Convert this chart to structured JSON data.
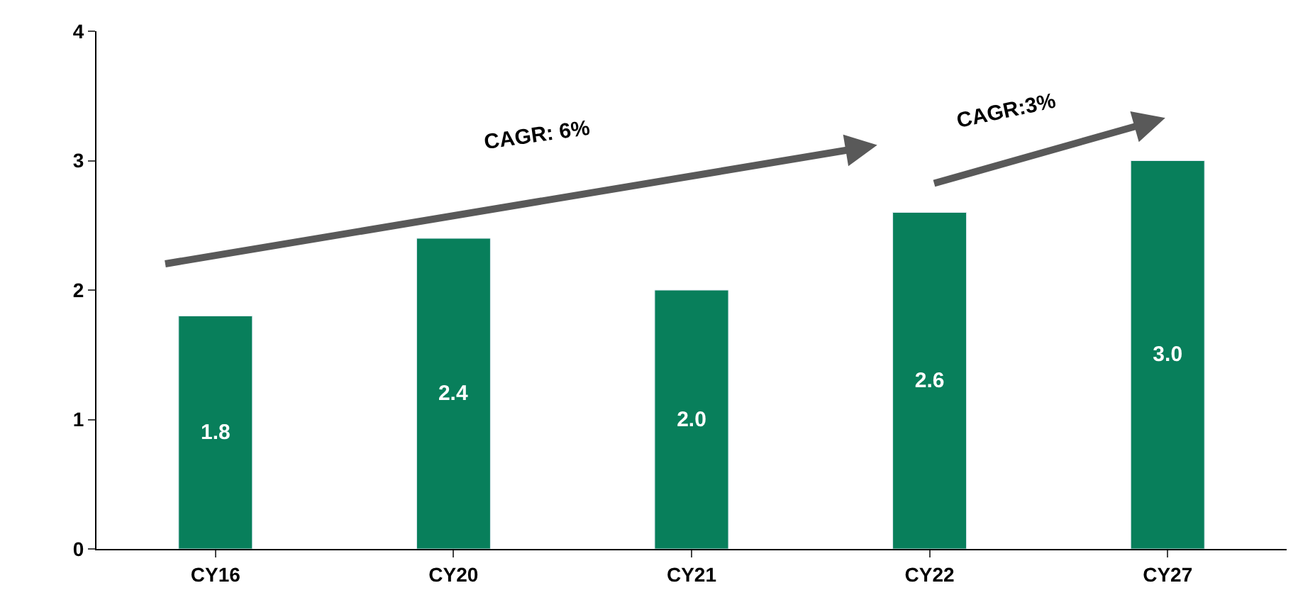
{
  "chart_data": {
    "type": "bar",
    "categories": [
      "CY16",
      "CY20",
      "CY21",
      "CY22",
      "CY27"
    ],
    "values": [
      1.8,
      2.4,
      2.0,
      2.6,
      3.0
    ],
    "color": "#087f5b",
    "value_labels": [
      "1.8",
      "2.4",
      "2.0",
      "2.6",
      "3.0"
    ],
    "ylim": [
      0,
      4
    ],
    "yticks": [
      0,
      1,
      2,
      3,
      4
    ],
    "annotations": [
      "CAGR: 6%",
      "CAGR:3%"
    ]
  }
}
